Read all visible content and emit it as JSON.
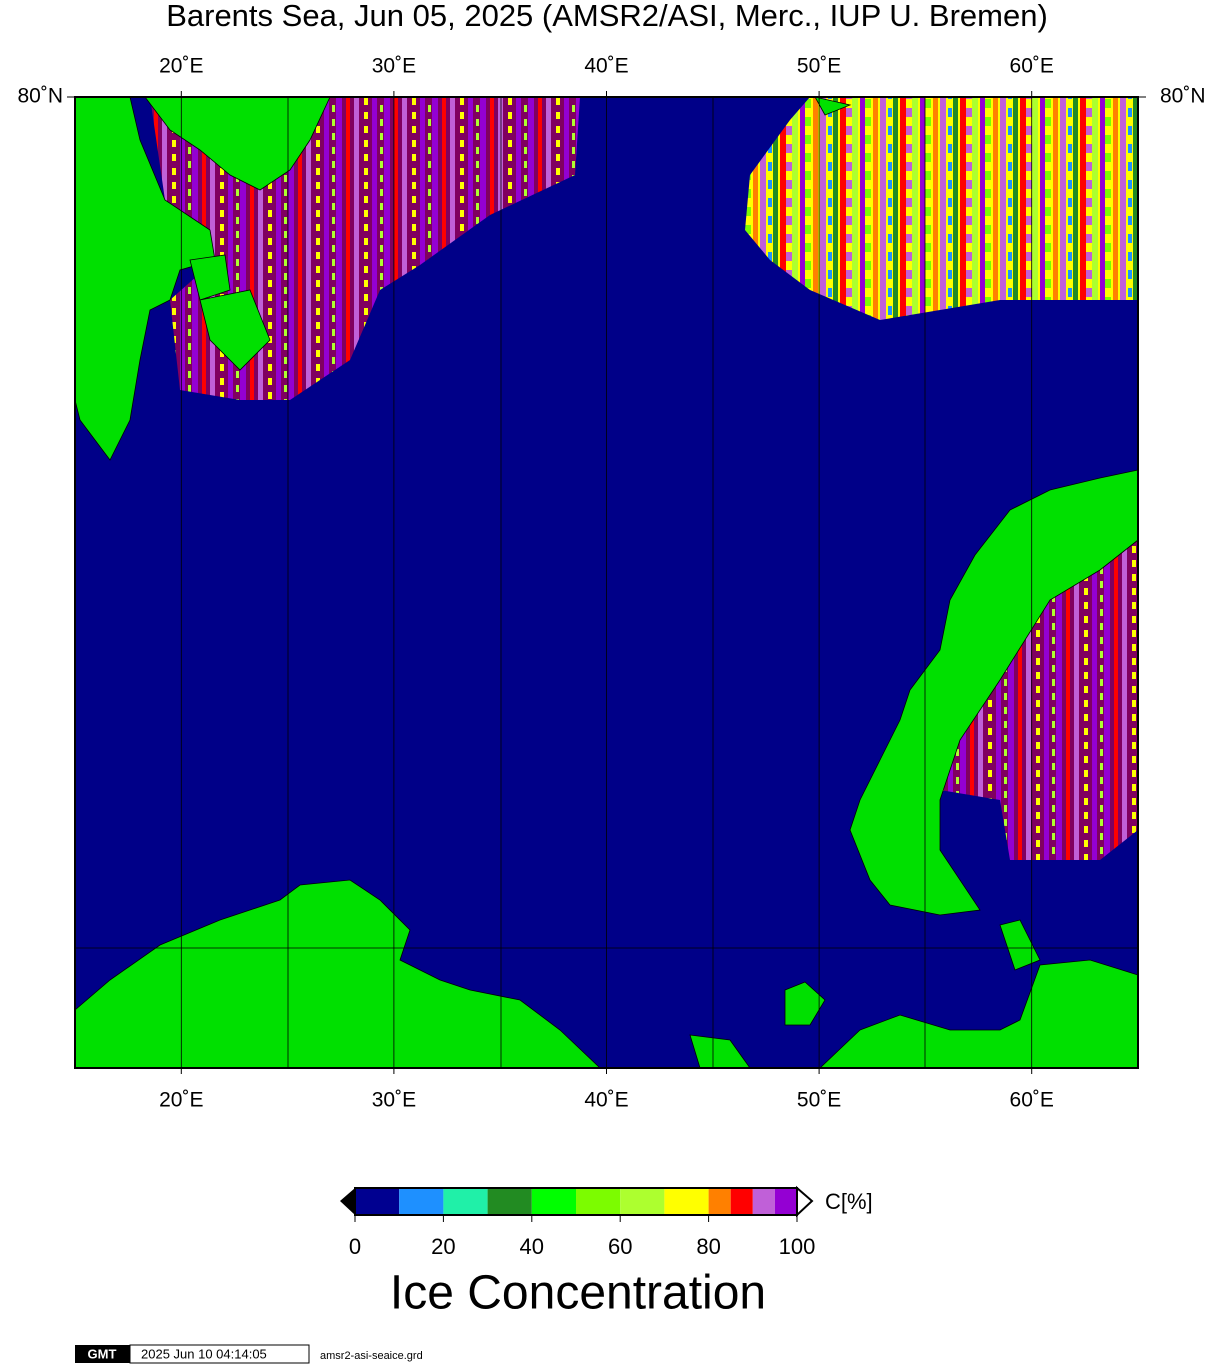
{
  "map": {
    "title": "Barents Sea, Jun 05, 2025 (AMSR2/ASI, Merc., IUP U. Bremen)",
    "lonlim": [
      15,
      65
    ],
    "lon_ticks": [
      {
        "value": 20,
        "label": "20˚E"
      },
      {
        "value": 30,
        "label": "30˚E"
      },
      {
        "value": 40,
        "label": "40˚E"
      },
      {
        "value": 50,
        "label": "50˚E"
      },
      {
        "value": 60,
        "label": "60˚E"
      }
    ],
    "lat_ticks": [
      {
        "value": 80,
        "label": "80˚N"
      }
    ]
  },
  "colorbar": {
    "label": "C[%]",
    "title": "Ice Concentration",
    "lim": [
      0,
      100
    ],
    "bounds": [
      0,
      10,
      20,
      30,
      40,
      50,
      60,
      70,
      80,
      85,
      90,
      95,
      100
    ],
    "colors": [
      "#000090",
      "#1e90ff",
      "#20f0a8",
      "#228b22",
      "#00ff00",
      "#7cfc00",
      "#adff2f",
      "#ffff00",
      "#ff8000",
      "#ff0000",
      "#c060d8",
      "#9400d3"
    ],
    "ticks": [
      0,
      20,
      40,
      60,
      80,
      100
    ]
  },
  "footer": {
    "logo": "GMT",
    "timestamp": "2025 Jun 10 04:14:05",
    "file": "amsr2-asi-seaice.grd"
  }
}
